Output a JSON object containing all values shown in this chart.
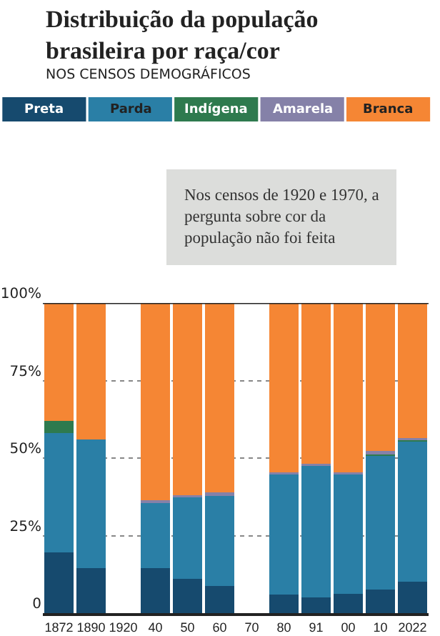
{
  "chart_data": {
    "type": "bar",
    "stacked": true,
    "title": "Distribuição da população brasileira por raça/cor",
    "subtitle": "NOS CENSOS DEMOGRÁFICOS",
    "annotations": [
      "Nos censos de 1920 e 1970, a pergunta sobre cor da população não foi feita"
    ],
    "categories": [
      "1872",
      "1890",
      "1920",
      "40",
      "50",
      "60",
      "70",
      "80",
      "91",
      "00",
      "10",
      "2022"
    ],
    "series": [
      {
        "name": "Preta",
        "color": "#164a6e",
        "values": [
          19.7,
          14.6,
          null,
          14.6,
          11.0,
          8.7,
          null,
          5.9,
          5.0,
          6.2,
          7.6,
          10.2
        ]
      },
      {
        "name": "Parda",
        "color": "#2a7fa6",
        "values": [
          38.3,
          41.4,
          null,
          21.2,
          26.5,
          29.5,
          null,
          38.8,
          42.5,
          38.5,
          43.1,
          45.3
        ]
      },
      {
        "name": "Indígena",
        "color": "#2e7a4e",
        "values": [
          3.9,
          0,
          null,
          0,
          0,
          0,
          null,
          0,
          0.2,
          0.4,
          0.4,
          0.6
        ]
      },
      {
        "name": "Amarela",
        "color": "#8581a8",
        "values": [
          0,
          0,
          null,
          0.6,
          0.6,
          0.7,
          null,
          0.6,
          0.4,
          0.4,
          1.1,
          0.4
        ]
      },
      {
        "name": "Branca",
        "color": "#f58634",
        "values": [
          38.1,
          44.0,
          null,
          63.6,
          61.9,
          61.1,
          null,
          54.7,
          51.9,
          54.5,
          47.8,
          43.5
        ]
      }
    ],
    "ylim": [
      0,
      100
    ],
    "yticks": [
      {
        "value": 0,
        "label": "0"
      },
      {
        "value": 25,
        "label": "25%"
      },
      {
        "value": 50,
        "label": "50%"
      },
      {
        "value": 75,
        "label": "75%"
      },
      {
        "value": 100,
        "label": "100%"
      }
    ],
    "grid": "y",
    "legend": "top"
  }
}
